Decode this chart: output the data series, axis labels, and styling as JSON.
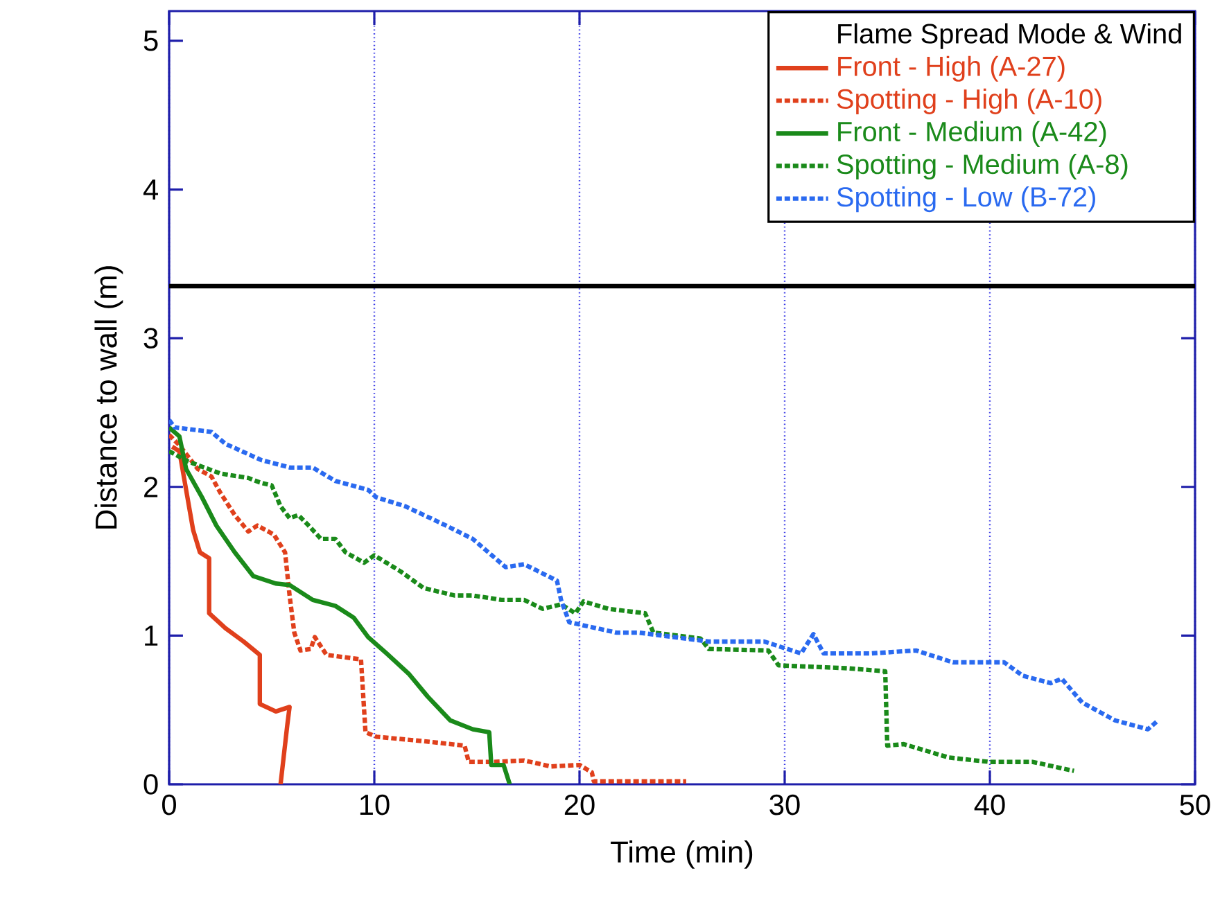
{
  "chart_data": {
    "type": "line",
    "xlabel": "Time (min)",
    "ylabel": "Distance to wall (m)",
    "legend_title": "Flame Spread Mode & Wind",
    "xlim": [
      0,
      50
    ],
    "ylim": [
      0,
      5.2
    ],
    "xticks": [
      0,
      10,
      20,
      30,
      40,
      50
    ],
    "yticks": [
      0,
      1,
      2,
      3,
      4,
      5
    ],
    "grid": "x",
    "legend": "top right",
    "ref_lines": [
      {
        "axis": "y",
        "value": 3.35,
        "color": "#000000",
        "line_style": "solid"
      }
    ],
    "series": [
      {
        "name": "Front - High (A-27)",
        "color": "#e0401c",
        "line_style": "solid",
        "x": [
          0.15,
          0.5,
          1.17,
          1.5,
          1.95,
          1.95,
          2.74,
          3.63,
          4.42,
          4.42,
          5.2,
          5.87,
          5.76,
          5.43
        ],
        "values": [
          2.27,
          2.24,
          1.71,
          1.56,
          1.52,
          1.15,
          1.05,
          0.96,
          0.87,
          0.54,
          0.49,
          0.52,
          0.4,
          0
        ]
      },
      {
        "name": "Spotting - High (A-10)",
        "color": "#e0401c",
        "line_style": "dotted",
        "x": [
          0,
          0.5,
          1.4,
          2.06,
          2.5,
          3.2,
          3.86,
          4.3,
          5.1,
          5.65,
          5.87,
          6.1,
          6.4,
          6.9,
          7.1,
          7.67,
          9.35,
          9.57,
          10.1,
          12.4,
          14.4,
          14.6,
          15.7,
          17.3,
          18.6,
          20,
          20.6,
          20.7,
          25.2
        ],
        "values": [
          2.35,
          2.28,
          2.12,
          2.07,
          1.96,
          1.81,
          1.7,
          1.74,
          1.68,
          1.56,
          1.27,
          1.02,
          0.9,
          0.91,
          0.99,
          0.87,
          0.84,
          0.35,
          0.32,
          0.29,
          0.26,
          0.15,
          0.15,
          0.16,
          0.12,
          0.13,
          0.08,
          0.02,
          0.02
        ]
      },
      {
        "name": "Front - Medium (A-42)",
        "color": "#1a8a1a",
        "line_style": "solid",
        "x": [
          0,
          0.5,
          0.83,
          1.6,
          2.3,
          3.2,
          4.1,
          5.2,
          5.87,
          7.0,
          8.1,
          9.0,
          9.7,
          10.6,
          11.7,
          12.6,
          13.7,
          14.8,
          15.6,
          15.7,
          16.3,
          16.6
        ],
        "values": [
          2.4,
          2.34,
          2.12,
          1.93,
          1.74,
          1.56,
          1.4,
          1.35,
          1.34,
          1.24,
          1.2,
          1.12,
          0.99,
          0.88,
          0.74,
          0.59,
          0.43,
          0.37,
          0.35,
          0.13,
          0.13,
          0
        ]
      },
      {
        "name": "Spotting - Medium (A-8)",
        "color": "#1a8a1a",
        "line_style": "dotted",
        "x": [
          0,
          0.94,
          2.5,
          3.86,
          4.42,
          5.0,
          5.43,
          5.87,
          6.3,
          6.8,
          7.4,
          8.1,
          8.6,
          9.5,
          10.0,
          11.3,
          12.4,
          13.9,
          14.8,
          16.2,
          17.3,
          18.2,
          19.1,
          19.8,
          20.2,
          21.4,
          23.2,
          23.6,
          25.9,
          26.3,
          29.2,
          29.7,
          33.1,
          34.9,
          35.0,
          35.8,
          38.0,
          40.0,
          42.1,
          44.1
        ],
        "values": [
          2.24,
          2.17,
          2.09,
          2.06,
          2.03,
          2.01,
          1.87,
          1.79,
          1.81,
          1.74,
          1.65,
          1.65,
          1.56,
          1.49,
          1.54,
          1.43,
          1.32,
          1.27,
          1.27,
          1.24,
          1.24,
          1.18,
          1.21,
          1.15,
          1.23,
          1.18,
          1.15,
          1.02,
          0.98,
          0.91,
          0.9,
          0.8,
          0.78,
          0.76,
          0.26,
          0.27,
          0.18,
          0.15,
          0.15,
          0.09
        ]
      },
      {
        "name": "Spotting - Low (B-72)",
        "color": "#2a6af0",
        "line_style": "dotted",
        "x": [
          0,
          0.27,
          2.06,
          2.74,
          4.5,
          5.9,
          7.0,
          8.1,
          9.7,
          10.1,
          11.5,
          13.5,
          14.8,
          16.4,
          17.3,
          18.9,
          19.1,
          19.5,
          21.8,
          22.9,
          26.3,
          29.0,
          30.8,
          31.4,
          31.9,
          34.2,
          36.4,
          38.2,
          40.7,
          41.6,
          42.97,
          43.5,
          44.5,
          46.1,
          47.7,
          48.2
        ],
        "values": [
          2.45,
          2.4,
          2.37,
          2.29,
          2.18,
          2.13,
          2.13,
          2.04,
          1.98,
          1.93,
          1.87,
          1.74,
          1.65,
          1.46,
          1.48,
          1.37,
          1.24,
          1.09,
          1.02,
          1.02,
          0.96,
          0.96,
          0.88,
          1.01,
          0.88,
          0.88,
          0.9,
          0.82,
          0.82,
          0.73,
          0.68,
          0.71,
          0.55,
          0.43,
          0.37,
          0.43
        ]
      }
    ]
  }
}
